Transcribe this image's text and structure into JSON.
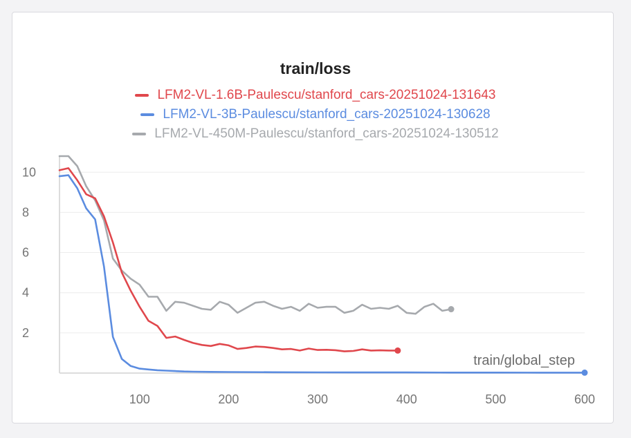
{
  "chart_data": {
    "type": "line",
    "title": "train/loss",
    "xlabel": "train/global_step",
    "ylabel": "",
    "xlim": [
      10,
      600
    ],
    "ylim": [
      0,
      10.8
    ],
    "xticks": [
      100,
      200,
      300,
      400,
      500,
      600
    ],
    "yticks": [
      2,
      4,
      6,
      8,
      10
    ],
    "grid": true,
    "legend_position": "top",
    "series": [
      {
        "name": "LFM2-VL-1.6B-Paulescu/stanford_cars-20251024-131643",
        "color": "#e0474c",
        "x": [
          10,
          20,
          30,
          40,
          50,
          60,
          70,
          80,
          90,
          100,
          110,
          120,
          130,
          140,
          150,
          160,
          170,
          180,
          190,
          200,
          210,
          220,
          230,
          240,
          250,
          260,
          270,
          280,
          290,
          300,
          310,
          320,
          330,
          340,
          350,
          360,
          370,
          380,
          390
        ],
        "y": [
          10.1,
          10.2,
          9.6,
          8.9,
          8.7,
          7.8,
          6.5,
          5.0,
          4.1,
          3.3,
          2.6,
          2.35,
          1.75,
          1.82,
          1.65,
          1.5,
          1.4,
          1.35,
          1.45,
          1.38,
          1.2,
          1.25,
          1.32,
          1.3,
          1.25,
          1.18,
          1.2,
          1.12,
          1.22,
          1.15,
          1.16,
          1.14,
          1.08,
          1.1,
          1.18,
          1.12,
          1.13,
          1.12,
          1.12
        ]
      },
      {
        "name": "LFM2-VL-3B-Paulescu/stanford_cars-20251024-130628",
        "color": "#5b8ce0",
        "x": [
          10,
          20,
          30,
          40,
          50,
          60,
          70,
          80,
          90,
          100,
          110,
          120,
          130,
          140,
          150,
          160,
          180,
          200,
          250,
          300,
          350,
          400,
          450,
          500,
          550,
          600
        ],
        "y": [
          9.8,
          9.85,
          9.2,
          8.2,
          7.65,
          5.3,
          1.8,
          0.7,
          0.35,
          0.22,
          0.18,
          0.14,
          0.12,
          0.1,
          0.08,
          0.07,
          0.06,
          0.05,
          0.04,
          0.035,
          0.03,
          0.03,
          0.025,
          0.025,
          0.02,
          0.02
        ]
      },
      {
        "name": "LFM2-VL-450M-Paulescu/stanford_cars-20251024-130512",
        "color": "#a6a9ad",
        "x": [
          10,
          20,
          30,
          40,
          50,
          60,
          70,
          80,
          90,
          100,
          110,
          120,
          130,
          140,
          150,
          160,
          170,
          180,
          190,
          200,
          210,
          220,
          230,
          240,
          250,
          260,
          270,
          280,
          290,
          300,
          310,
          320,
          330,
          340,
          350,
          360,
          370,
          380,
          390,
          400,
          410,
          420,
          430,
          440,
          450
        ],
        "y": [
          10.8,
          10.8,
          10.3,
          9.3,
          8.6,
          7.6,
          5.7,
          5.1,
          4.7,
          4.4,
          3.8,
          3.8,
          3.1,
          3.55,
          3.5,
          3.35,
          3.2,
          3.15,
          3.55,
          3.4,
          3.0,
          3.25,
          3.5,
          3.55,
          3.35,
          3.2,
          3.3,
          3.1,
          3.45,
          3.25,
          3.3,
          3.3,
          3.0,
          3.1,
          3.4,
          3.2,
          3.25,
          3.2,
          3.35,
          3.0,
          2.95,
          3.3,
          3.45,
          3.1,
          3.18
        ]
      }
    ]
  }
}
